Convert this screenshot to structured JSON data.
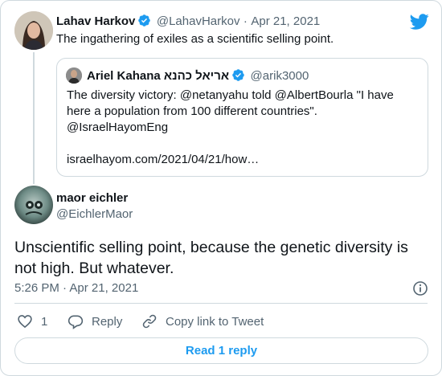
{
  "original_tweet": {
    "author_name": "Lahav Harkov",
    "author_handle": "@LahavHarkov",
    "separator": "·",
    "date": "Apr 21, 2021",
    "text": "The ingathering of exiles as a scientific selling point."
  },
  "quoted_tweet": {
    "author_name": "Ariel Kahana אריאל כהנא",
    "author_handle": "@arik3000",
    "line1": "The diversity victory: @netanyahu told @AlbertBourla \"I have",
    "line2": "here a population from 100 different countries\".",
    "line3": "@IsraelHayomEng",
    "link": "israelhayom.com/2021/04/21/how…"
  },
  "main_tweet": {
    "author_name": "maor eichler",
    "author_handle": "@EichlerMaor",
    "line1": "Unscientific selling point, because the genetic diversity is",
    "line2": "not high. But whatever.",
    "time": "5:26 PM",
    "separator": "·",
    "date": "Apr 21, 2021"
  },
  "actions": {
    "like_count": "1",
    "reply_label": "Reply",
    "copy_link_label": "Copy link to Tweet"
  },
  "read_replies_label": "Read 1 reply",
  "icons": {
    "brand": "twitter-bird-icon",
    "verified": "verified-badge-icon",
    "info": "info-icon",
    "like": "heart-icon",
    "reply": "reply-bubble-icon",
    "copy_link": "link-icon"
  },
  "colors": {
    "accent": "#1d9bf0",
    "text": "#0f1419",
    "secondary_text": "#536471",
    "border": "#cfd9de"
  }
}
